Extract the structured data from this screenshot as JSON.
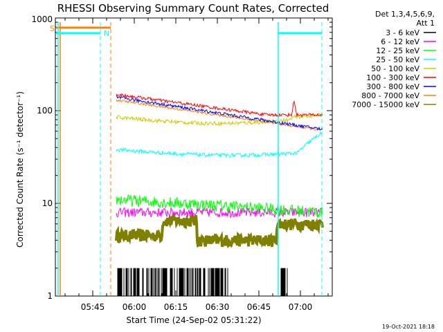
{
  "chart_data": {
    "type": "line",
    "title": "RHESSI Observing Summary Count Rates, Corrected",
    "xlabel": "Start Time (24-Sep-02 05:31:22)",
    "ylabel": "Corrected Count Rate (s⁻¹ detector⁻¹)",
    "y_scale": "log",
    "ylim": [
      1,
      1000
    ],
    "x_ticks": [
      "05:45",
      "06:00",
      "06:15",
      "06:30",
      "06:45",
      "07:00"
    ],
    "y_ticks": [
      "1",
      "10",
      "100",
      "1000"
    ],
    "x_range_minutes": [
      0,
      92
    ],
    "legend": {
      "title_lines": [
        "Det 1,3,4,5,6,9,",
        "Att 1"
      ],
      "placement": "right"
    },
    "series": [
      {
        "name": "3 - 6 keV",
        "color": "#000000"
      },
      {
        "name": "6 - 12 keV",
        "color": "#ff00ff"
      },
      {
        "name": "12 - 25 keV",
        "color": "#00ff00"
      },
      {
        "name": "25 - 50 keV",
        "color": "#00ffff"
      },
      {
        "name": "50 - 100 keV",
        "color": "#cccc00"
      },
      {
        "name": "100 - 300 keV",
        "color": "#ff0000"
      },
      {
        "name": "300 - 800 keV",
        "color": "#0000ff"
      },
      {
        "name": "800 - 7000 keV",
        "color": "#ff8000"
      },
      {
        "name": "7000 - 15000 keV",
        "color": "#808000"
      }
    ],
    "markers": {
      "saa_label": "S",
      "night_label": "N"
    }
  },
  "footer": {
    "timestamp": "19-Oct-2021 18:18"
  }
}
